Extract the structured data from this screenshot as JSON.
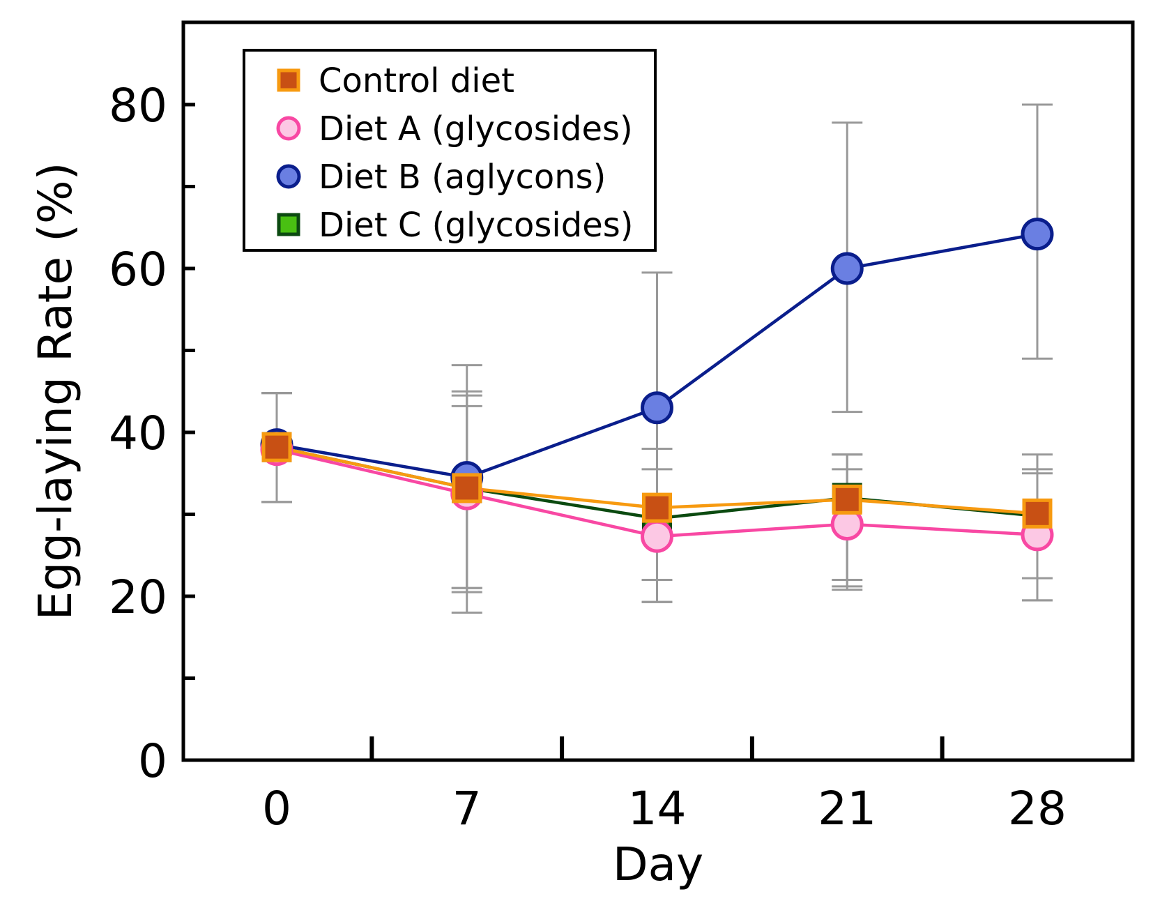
{
  "chart_data": {
    "type": "line",
    "title": "",
    "xlabel": "Day",
    "ylabel": "Egg-laying Rate (%)",
    "x": [
      0,
      7,
      14,
      21,
      28
    ],
    "x_tick_labels": [
      "0",
      "7",
      "14",
      "21",
      "28"
    ],
    "ylim": [
      0,
      90
    ],
    "y_ticks": [
      0,
      20,
      40,
      60,
      80
    ],
    "y_tick_labels": [
      "0",
      "20",
      "40",
      "60",
      "80"
    ],
    "legend_position": "top-left",
    "series": [
      {
        "name": "Diet C (glycosides)",
        "marker": "square",
        "line_color": "#0b4a10",
        "marker_fill": "#49c012",
        "marker_edge": "#0b4a10",
        "values": [
          38.2,
          33.2,
          29.5,
          32.0,
          29.8
        ],
        "error_low": [
          31.5,
          21.0,
          19.3,
          21.2,
          19.5
        ],
        "error_high": [
          44.8,
          45.0,
          38.0,
          37.3,
          35.5
        ]
      },
      {
        "name": "Diet B (aglycons)",
        "marker": "circle",
        "line_color": "#0a1e8c",
        "marker_fill": "#6a7fe2",
        "marker_edge": "#0a1e8c",
        "values": [
          38.5,
          34.5,
          43.0,
          60.0,
          64.2
        ],
        "error_low": [
          31.5,
          20.5,
          19.3,
          42.5,
          49.0
        ],
        "error_high": [
          44.8,
          48.2,
          59.5,
          77.8,
          80.0
        ]
      },
      {
        "name": "Diet A (glycosides)",
        "marker": "circle",
        "line_color": "#f848a3",
        "marker_fill": "#fcc8e4",
        "marker_edge": "#f848a3",
        "values": [
          37.9,
          32.5,
          27.3,
          28.8,
          27.5
        ],
        "error_low": [
          31.5,
          18.0,
          19.3,
          20.8,
          19.5
        ],
        "error_high": [
          44.8,
          44.5,
          35.5,
          35.5,
          35.0
        ]
      },
      {
        "name": "Control diet",
        "marker": "square",
        "line_color": "#f79a10",
        "marker_fill": "#c85014",
        "marker_edge": "#f79a10",
        "values": [
          38.2,
          33.2,
          30.8,
          31.8,
          30.1
        ],
        "error_low": [
          31.5,
          21.0,
          22.0,
          22.0,
          22.2
        ],
        "error_high": [
          44.8,
          43.2,
          38.0,
          37.3,
          37.3
        ]
      }
    ],
    "legend_order": [
      "Control diet",
      "Diet A (glycosides)",
      "Diet B (aglycons)",
      "Diet C (glycosides)"
    ],
    "errorbar_color": "#999999"
  }
}
